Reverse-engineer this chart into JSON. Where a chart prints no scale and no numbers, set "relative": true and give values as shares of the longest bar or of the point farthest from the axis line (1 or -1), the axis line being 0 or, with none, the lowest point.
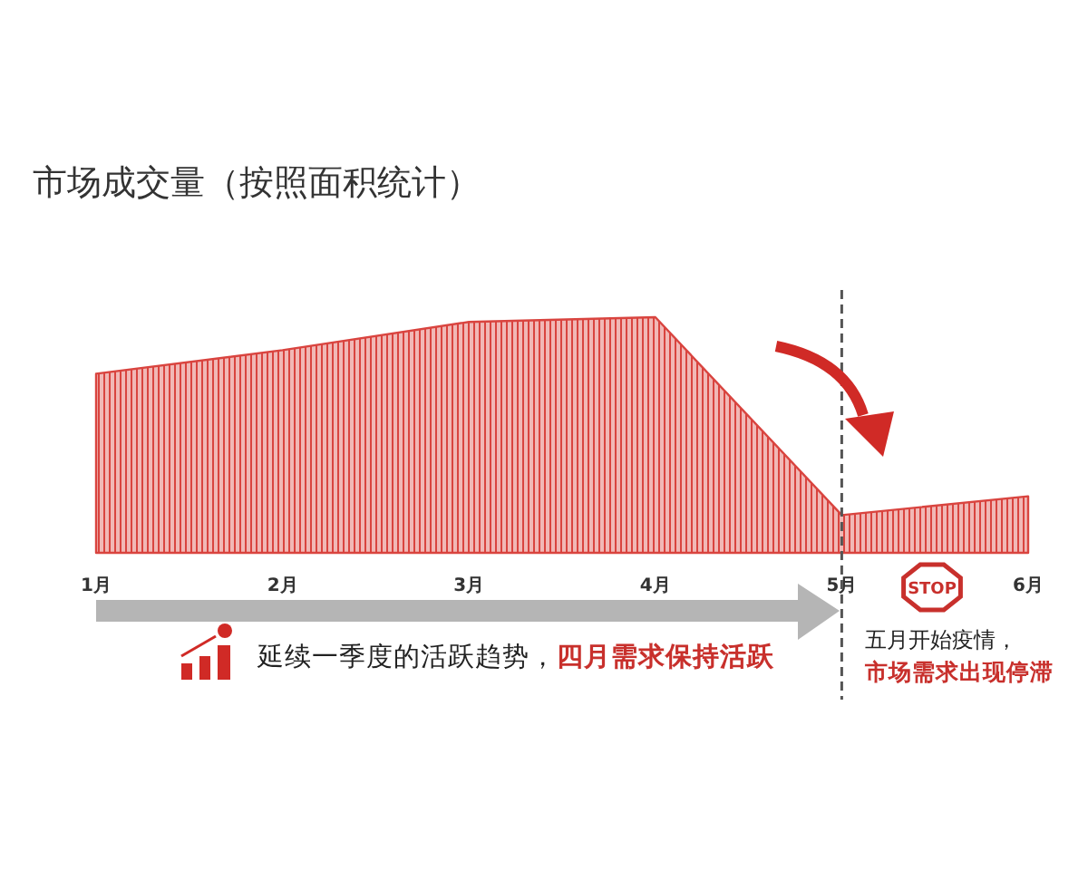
{
  "chart_data": {
    "type": "area",
    "title": "市场成交量（按照面积统计）",
    "categories": [
      "1月",
      "2月",
      "3月",
      "4月",
      "5月",
      "6月"
    ],
    "relative": true,
    "color": "#d9443f",
    "values": [
      0.76,
      0.86,
      0.98,
      1,
      0.16,
      0.24
    ],
    "ref_lines": [
      {
        "axis": "x",
        "value": "5月",
        "color": "#555555",
        "line_style": "dashed"
      }
    ],
    "annotations": [
      "延续一季度的活跃趋势，",
      "四月需求保持活跃",
      "五月开始疫情，",
      "市场需求出现停滞",
      "STOP"
    ]
  }
}
